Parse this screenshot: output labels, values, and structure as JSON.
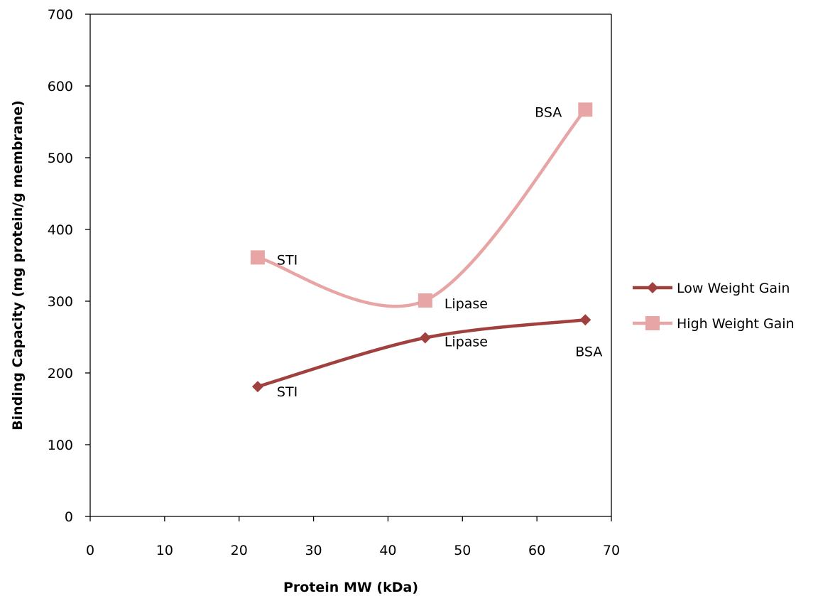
{
  "chart_data": {
    "type": "line",
    "title": "",
    "xlabel": "Protein MW (kDa)",
    "ylabel": "Binding Capacity (mg protein/g membrane)",
    "xlim": [
      0,
      70
    ],
    "ylim": [
      0,
      700
    ],
    "xticks": [
      "0",
      "10",
      "20",
      "30",
      "40",
      "50",
      "60",
      "70"
    ],
    "yticks": [
      "0",
      "100",
      "200",
      "300",
      "400",
      "500",
      "600",
      "700"
    ],
    "grid": false,
    "legend_position": "right",
    "series": [
      {
        "name": "Low Weight Gain",
        "marker": "diamond",
        "color": "#A0413F",
        "x": [
          22.5,
          45,
          66.5
        ],
        "y": [
          181,
          249,
          274
        ],
        "point_labels": [
          "STI",
          "Lipase",
          "BSA"
        ]
      },
      {
        "name": "High Weight Gain",
        "marker": "square",
        "color": "#E8A5A5",
        "x": [
          22.5,
          45,
          66.5
        ],
        "y": [
          361,
          301,
          567
        ],
        "point_labels": [
          "STI",
          "Lipase",
          "BSA"
        ]
      }
    ]
  }
}
